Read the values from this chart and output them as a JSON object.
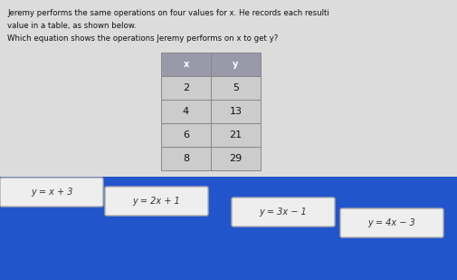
{
  "background_color": "#2255cc",
  "panel_bg": "#dcdcdc",
  "blue_stripe_color": "#2255cc",
  "header_text_line1": "Jeremy performs the same operations on four values for x. He records each resulti",
  "header_text_line2": "value in a table, as shown below.",
  "header_text_line3": "Which equation shows the operations Jeremy performs on x to get y?",
  "table_x_values": [
    "x",
    "2",
    "4",
    "6",
    "8"
  ],
  "table_y_values": [
    "y",
    "5",
    "13",
    "21",
    "29"
  ],
  "table_header_bg": "#9999aa",
  "table_cell_bg": "#cccccc",
  "table_border": "#888888",
  "answer_choices": [
    "y = x + 3",
    "y = 2x + 1",
    "y = 3x − 1",
    "y = 4x − 3"
  ],
  "answer_box_color": "#eeeeee",
  "answer_box_edge": "#aaaaaa",
  "answer_text_color": "#333333"
}
